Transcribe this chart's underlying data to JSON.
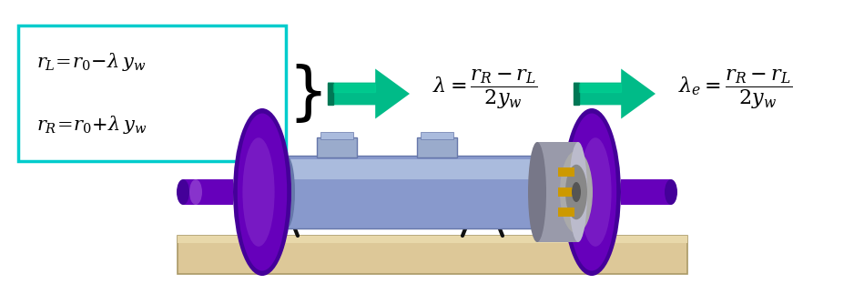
{
  "bg_color": "#ffffff",
  "box_color": "#00cccc",
  "arrow_fill": "#00bb88",
  "arrow_dark": "#007755",
  "formula_color": "#000000",
  "figsize": [
    9.49,
    3.23
  ],
  "dpi": 100,
  "wheel_purple": "#6600bb",
  "wheel_purple_light": "#8833cc",
  "wheel_purple_dark": "#440099",
  "axle_blue": "#8899cc",
  "axle_blue_light": "#aabbdd",
  "axle_blue_dark": "#6677aa",
  "gear_gray": "#999aaa",
  "gear_light": "#bbbbcc",
  "gear_dark": "#777788",
  "base_tan": "#ddc898",
  "base_dark": "#aa9966",
  "connector_gold": "#cc9900",
  "leg_color": "#111111"
}
